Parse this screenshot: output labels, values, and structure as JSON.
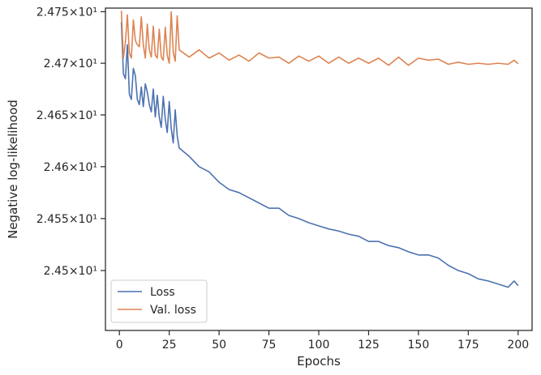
{
  "chart_data": {
    "type": "line",
    "title": "",
    "xlabel": "Epochs",
    "ylabel": "Negative log-likelihood",
    "xlim": [
      -7,
      207
    ],
    "ylim": [
      24.4425,
      24.7535
    ],
    "y_scale": "log",
    "x_ticks": [
      0,
      25,
      50,
      75,
      100,
      125,
      150,
      175,
      200
    ],
    "y_ticks": [
      {
        "value": 24.5,
        "label": "2.45×10¹"
      },
      {
        "value": 24.55,
        "label": "2.455×10¹"
      },
      {
        "value": 24.6,
        "label": "2.46×10¹"
      },
      {
        "value": 24.65,
        "label": "2.465×10¹"
      },
      {
        "value": 24.7,
        "label": "2.47×10¹"
      },
      {
        "value": 24.75,
        "label": "2.475×10¹"
      }
    ],
    "grid": false,
    "legend_position": "bottom-left",
    "series": [
      {
        "name": "Loss",
        "color": "#4c72b0",
        "x": [
          1,
          2,
          3,
          4,
          5,
          6,
          7,
          8,
          9,
          10,
          11,
          12,
          13,
          14,
          15,
          16,
          17,
          18,
          19,
          20,
          21,
          22,
          23,
          24,
          25,
          26,
          27,
          28,
          29,
          30,
          35,
          40,
          45,
          50,
          55,
          60,
          65,
          70,
          75,
          80,
          85,
          90,
          95,
          100,
          105,
          110,
          115,
          120,
          125,
          130,
          135,
          140,
          145,
          150,
          155,
          160,
          165,
          170,
          175,
          180,
          185,
          190,
          195,
          198,
          200
        ],
        "values": [
          24.74,
          24.69,
          24.685,
          24.718,
          24.67,
          24.665,
          24.695,
          24.688,
          24.665,
          24.66,
          24.677,
          24.658,
          24.68,
          24.672,
          24.66,
          24.653,
          24.675,
          24.648,
          24.669,
          24.648,
          24.638,
          24.668,
          24.646,
          24.633,
          24.663,
          24.637,
          24.623,
          24.655,
          24.63,
          24.618,
          24.61,
          24.6,
          24.595,
          24.585,
          24.578,
          24.575,
          24.57,
          24.565,
          24.56,
          24.56,
          24.553,
          24.55,
          24.546,
          24.543,
          24.54,
          24.538,
          24.535,
          24.533,
          24.528,
          24.528,
          24.524,
          24.522,
          24.518,
          24.515,
          24.515,
          24.512,
          24.505,
          24.5,
          24.497,
          24.492,
          24.49,
          24.487,
          24.484,
          24.49,
          24.4855
        ]
      },
      {
        "name": "Val. loss",
        "color": "#dd8452",
        "x": [
          1,
          2,
          3,
          4,
          5,
          6,
          7,
          8,
          9,
          10,
          11,
          12,
          13,
          14,
          15,
          16,
          17,
          18,
          19,
          20,
          21,
          22,
          23,
          24,
          25,
          26,
          27,
          28,
          29,
          30,
          35,
          40,
          45,
          50,
          55,
          60,
          65,
          70,
          75,
          80,
          85,
          90,
          95,
          100,
          105,
          110,
          115,
          120,
          125,
          130,
          135,
          140,
          145,
          150,
          155,
          160,
          165,
          170,
          175,
          180,
          185,
          190,
          195,
          198,
          200
        ],
        "values": [
          24.751,
          24.705,
          24.72,
          24.747,
          24.71,
          24.705,
          24.742,
          24.722,
          24.718,
          24.716,
          24.745,
          24.718,
          24.705,
          24.738,
          24.713,
          24.706,
          24.736,
          24.708,
          24.705,
          24.733,
          24.706,
          24.703,
          24.735,
          24.708,
          24.7,
          24.75,
          24.711,
          24.702,
          24.746,
          24.713,
          24.706,
          24.713,
          24.705,
          24.71,
          24.703,
          24.708,
          24.702,
          24.71,
          24.705,
          24.706,
          24.7,
          24.707,
          24.702,
          24.707,
          24.7,
          24.706,
          24.7,
          24.705,
          24.7,
          24.705,
          24.698,
          24.706,
          24.698,
          24.705,
          24.703,
          24.704,
          24.699,
          24.701,
          24.699,
          24.7,
          24.699,
          24.7,
          24.699,
          24.703,
          24.6995
        ]
      }
    ]
  }
}
